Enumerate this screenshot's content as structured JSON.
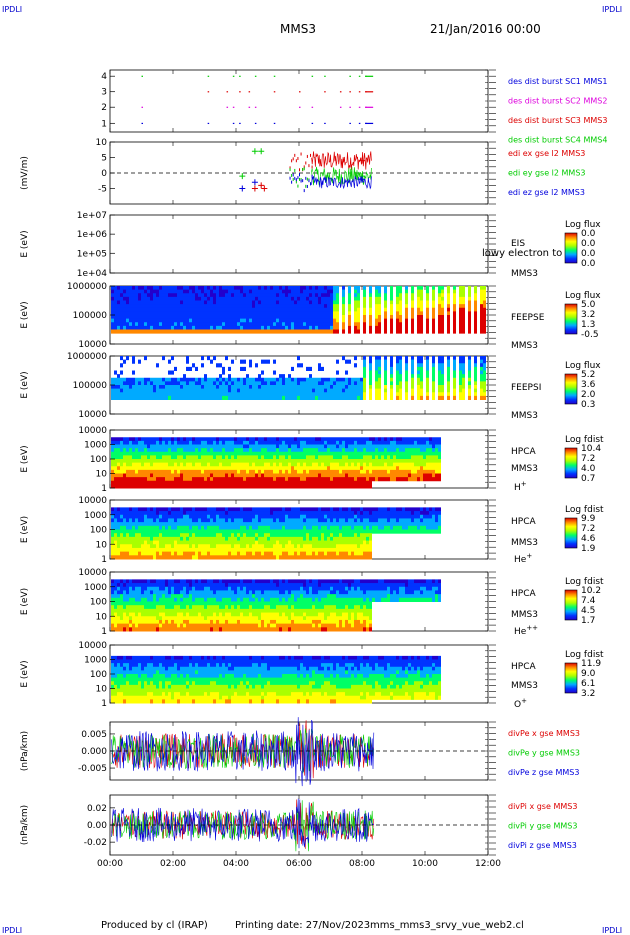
{
  "header": {
    "corner_tl": "IPDLI",
    "corner_tr": "IPDLI",
    "corner_bl": "IPDLI",
    "corner_br": "IPDLI",
    "spacecraft": "MMS3",
    "date": "21/Jan/2016 00:00"
  },
  "footer": {
    "produced_by": "Produced by cl (IRAP)",
    "printing_date": "Printing date: 27/Nov/2023",
    "script": "mms_mms3_srvy_vue_web2.cl"
  },
  "colors": {
    "red": "#dd0000",
    "green": "#00cc00",
    "blue": "#0000dd",
    "magenta": "#dd00dd",
    "colorbar": [
      "#2200cc",
      "#0033ff",
      "#00aaff",
      "#00ff66",
      "#aaff00",
      "#ffff00",
      "#ff8800",
      "#dd0000"
    ]
  },
  "chart_data": [
    {
      "type": "scatter",
      "name": "burst-availability",
      "yticks": [
        "1",
        "2",
        "3",
        "4"
      ],
      "ylim": [
        0.5,
        4.5
      ],
      "xlim_hours": [
        0,
        12
      ],
      "legend": [
        "des dist burst SC1 MMS1",
        "des dist burst SC2 MMS2",
        "des dist burst SC3 MMS3",
        "des dist burst SC4 MMS4"
      ],
      "burst_hours": [
        1.0,
        3.1,
        3.7,
        3.9,
        4.1,
        4.4,
        4.6,
        5.2,
        6.0,
        6.4,
        6.8,
        7.3,
        7.6,
        7.9,
        8.1
      ]
    },
    {
      "type": "line",
      "name": "edi-electric-field",
      "ylabel": "(mV/m)",
      "ylim": [
        -10,
        10
      ],
      "yticks": [
        "10",
        "5",
        "0",
        "-5"
      ],
      "legend": [
        "edi ex gse l2 MMS3",
        "edi ey gse l2 MMS3",
        "edi ez gse l2 MMS3"
      ],
      "data_span_hours": [
        4.1,
        8.4
      ]
    },
    {
      "type": "heatmap",
      "name": "eis",
      "ylabel": "E (eV)",
      "yticks": [
        "1e+07",
        "1e+06",
        "1e+05",
        "1e+04"
      ],
      "side_labels": [
        "EIS",
        "MMS3"
      ],
      "overlay_text": "lowy electron to",
      "colorbar_title": "Log flux",
      "colorbar_ticks": [
        "0.0",
        "0.0",
        "0.0",
        "0.0"
      ]
    },
    {
      "type": "heatmap",
      "name": "feeps-electron",
      "ylabel": "E (eV)",
      "yticks": [
        "1000000",
        "100000",
        "10000"
      ],
      "side_labels": [
        "FEEPSE",
        "MMS3"
      ],
      "colorbar_title": "Log flux",
      "colorbar_ticks": [
        "5.0",
        "3.2",
        "1.3",
        "-0.5"
      ]
    },
    {
      "type": "heatmap",
      "name": "feeps-ion",
      "ylabel": "E (eV)",
      "yticks": [
        "1000000",
        "100000",
        "10000"
      ],
      "side_labels": [
        "FEEPSI",
        "MMS3"
      ],
      "colorbar_title": "Log flux",
      "colorbar_ticks": [
        "5.2",
        "3.6",
        "2.0",
        "0.3"
      ]
    },
    {
      "type": "heatmap",
      "name": "hpca-h",
      "ylabel": "E (eV)",
      "yticks": [
        "10000",
        "1000",
        "100",
        "10",
        "1"
      ],
      "side_labels": [
        "HPCA",
        "MMS3"
      ],
      "species": "H",
      "species_sup": "+",
      "colorbar_title": "Log fdist",
      "colorbar_ticks": [
        "10.4",
        "7.2",
        "4.0",
        "0.7"
      ]
    },
    {
      "type": "heatmap",
      "name": "hpca-he",
      "ylabel": "E (eV)",
      "yticks": [
        "10000",
        "1000",
        "100",
        "10",
        "1"
      ],
      "side_labels": [
        "HPCA",
        "MMS3"
      ],
      "species": "He",
      "species_sup": "+",
      "colorbar_title": "Log fdist",
      "colorbar_ticks": [
        "9.9",
        "7.2",
        "4.6",
        "1.9"
      ]
    },
    {
      "type": "heatmap",
      "name": "hpca-he2",
      "ylabel": "E (eV)",
      "yticks": [
        "10000",
        "1000",
        "100",
        "10",
        "1"
      ],
      "side_labels": [
        "HPCA",
        "MMS3"
      ],
      "species": "He",
      "species_sup": "++",
      "colorbar_title": "Log fdist",
      "colorbar_ticks": [
        "10.2",
        "7.4",
        "4.5",
        "1.7"
      ]
    },
    {
      "type": "heatmap",
      "name": "hpca-o",
      "ylabel": "E (eV)",
      "yticks": [
        "10000",
        "1000",
        "100",
        "10",
        "1"
      ],
      "side_labels": [
        "HPCA",
        "MMS3"
      ],
      "species": "O",
      "species_sup": "+",
      "colorbar_title": "Log fdist",
      "colorbar_ticks": [
        "11.9",
        "9.0",
        "6.1",
        "3.2"
      ]
    },
    {
      "type": "line",
      "name": "div-pe",
      "ylabel": "(nPa/km)",
      "ylim": [
        -0.0085,
        0.0085
      ],
      "yticks": [
        "0.005",
        "0.000",
        "-0.005"
      ],
      "legend": [
        "divPe x gse MMS3",
        "divPe y gse MMS3",
        "divPe z gse MMS3"
      ],
      "data_span_hours": [
        0,
        8.4
      ]
    },
    {
      "type": "line",
      "name": "div-pi",
      "ylabel": "(nPa/km)",
      "ylim": [
        -0.035,
        0.035
      ],
      "yticks": [
        "0.02",
        "0.00",
        "-0.02"
      ],
      "legend": [
        "divPi x gse MMS3",
        "divPi y gse MMS3",
        "divPi z gse MMS3"
      ],
      "data_span_hours": [
        0,
        8.4
      ]
    }
  ],
  "xaxis": {
    "ticks": [
      "00:00",
      "02:00",
      "04:00",
      "06:00",
      "08:00",
      "10:00",
      "12:00"
    ],
    "xlim_hours": [
      0,
      12
    ]
  }
}
